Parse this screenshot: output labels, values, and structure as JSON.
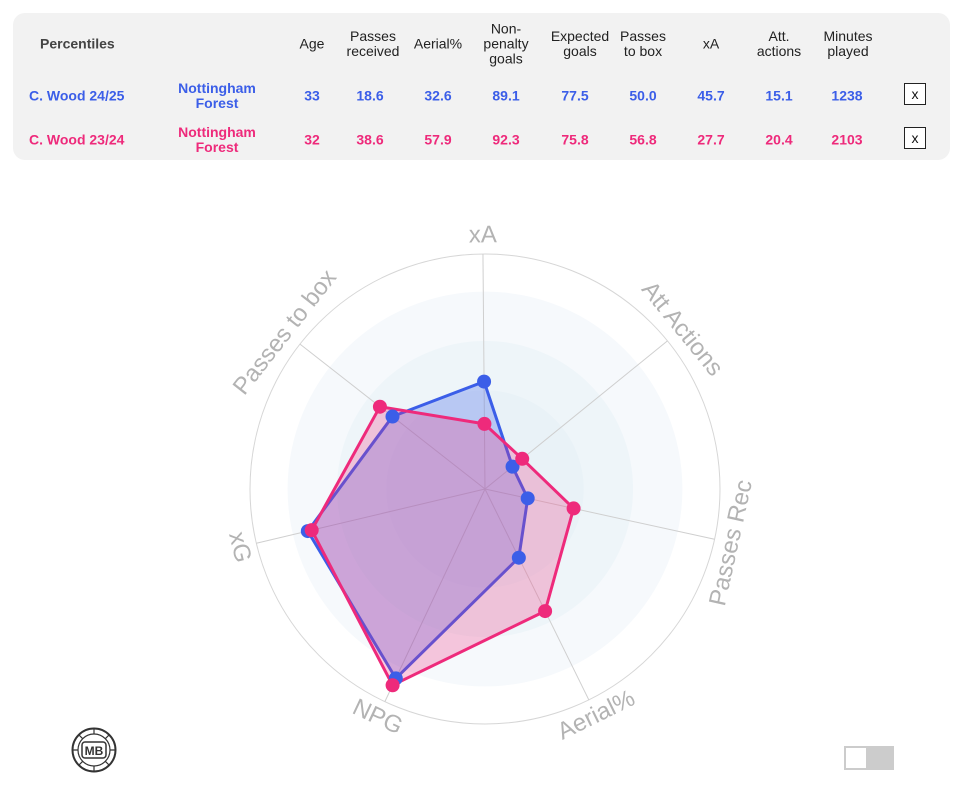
{
  "table": {
    "header_label": "Percentiles",
    "columns": [
      {
        "key": "age",
        "label": "Age"
      },
      {
        "key": "passes_received",
        "label": "Passes\nreceived"
      },
      {
        "key": "aerial",
        "label": "Aerial%"
      },
      {
        "key": "npg",
        "label": "Non-\npenalty\ngoals"
      },
      {
        "key": "xg",
        "label": "Expected\ngoals"
      },
      {
        "key": "passes_box",
        "label": "Passes\nto box"
      },
      {
        "key": "xa",
        "label": "xA"
      },
      {
        "key": "att_actions",
        "label": "Att.\nactions"
      },
      {
        "key": "minutes",
        "label": "Minutes\nplayed"
      }
    ],
    "rows": [
      {
        "player": "C. Wood 24/25",
        "team": "Nottingham\nForest",
        "values": [
          "33",
          "18.6",
          "32.6",
          "89.1",
          "77.5",
          "50.0",
          "45.7",
          "15.1",
          "1238"
        ],
        "color": "#3b5ee8",
        "remove_label": "x"
      },
      {
        "player": "C. Wood 23/24",
        "team": "Nottingham\nForest",
        "values": [
          "32",
          "38.6",
          "57.9",
          "92.3",
          "75.8",
          "56.8",
          "27.7",
          "20.4",
          "2103"
        ],
        "color": "#ee2a7b",
        "remove_label": "x"
      }
    ]
  },
  "chart_data": {
    "type": "radar",
    "axes": [
      "xA",
      "Att Actions",
      "Passes Rec",
      "Aerial%",
      "NPG",
      "xG",
      "Passes to box"
    ],
    "range": [
      0,
      100
    ],
    "series": [
      {
        "name": "C. Wood 24/25",
        "color": "#3b5ee8",
        "values": [
          45.7,
          15.1,
          18.6,
          32.6,
          89.1,
          77.5,
          50.0
        ]
      },
      {
        "name": "C. Wood 23/24",
        "color": "#ee2a7b",
        "values": [
          27.7,
          20.4,
          38.6,
          57.9,
          92.3,
          75.8,
          56.8
        ]
      }
    ]
  },
  "logo": {
    "text": "MB"
  }
}
